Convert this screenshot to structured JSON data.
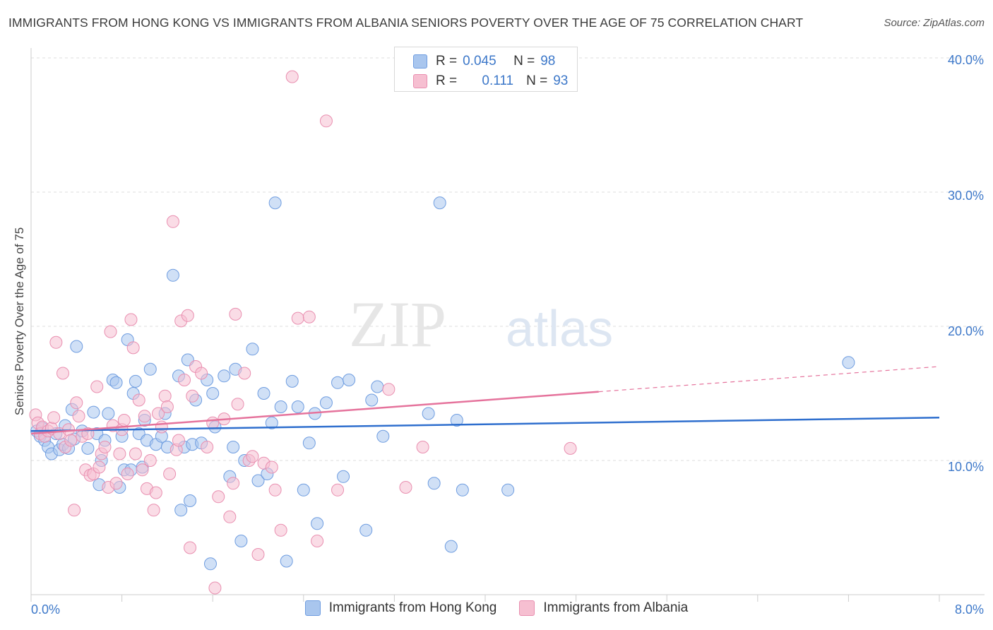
{
  "header": {
    "title": "IMMIGRANTS FROM HONG KONG VS IMMIGRANTS FROM ALBANIA SENIORS POVERTY OVER THE AGE OF 75 CORRELATION CHART",
    "source": "Source: ZipAtlas.com"
  },
  "legend_stats": [
    {
      "r_label": "R =",
      "r_value": "0.045",
      "n_label": "N =",
      "n_value": "98"
    },
    {
      "r_label": "R =",
      "r_value": "0.111",
      "n_label": "N =",
      "n_value": "93"
    }
  ],
  "watermark": {
    "part1": "ZIP",
    "part2": "atlas"
  },
  "colors": {
    "blue_fill": "#a9c6ee",
    "blue_stroke": "#6f9de0",
    "blue_line": "#2f6fce",
    "pink_fill": "#f6bfd1",
    "pink_stroke": "#e98fb0",
    "pink_line": "#e5739c",
    "axis_text": "#3d78c9",
    "grid": "#dddddd"
  },
  "chart_data": {
    "type": "scatter",
    "title": "IMMIGRANTS FROM HONG KONG VS IMMIGRANTS FROM ALBANIA SENIORS POVERTY OVER THE AGE OF 75 CORRELATION CHART",
    "xlabel": "",
    "ylabel": "Seniors Poverty Over the Age of 75",
    "xlim": [
      0,
      8
    ],
    "ylim": [
      0,
      40
    ],
    "x_tick_labels": [
      "0.0%",
      "8.0%"
    ],
    "y_ticks": [
      10,
      20,
      30,
      40
    ],
    "y_tick_labels": [
      "10.0%",
      "20.0%",
      "30.0%",
      "40.0%"
    ],
    "grid": true,
    "series": [
      {
        "name": "Immigrants from Hong Kong",
        "color": "#a9c6ee",
        "trend": {
          "x": [
            0,
            8
          ],
          "y": [
            12.2,
            13.2
          ],
          "solid_until": 8
        },
        "points": [
          [
            0.05,
            12.2
          ],
          [
            0.08,
            11.8
          ],
          [
            0.1,
            12.4
          ],
          [
            0.12,
            11.5
          ],
          [
            0.15,
            11.0
          ],
          [
            0.18,
            10.5
          ],
          [
            0.22,
            12.0
          ],
          [
            0.25,
            10.8
          ],
          [
            0.28,
            11.2
          ],
          [
            0.3,
            12.6
          ],
          [
            0.33,
            10.9
          ],
          [
            0.36,
            13.8
          ],
          [
            0.38,
            11.6
          ],
          [
            0.4,
            18.5
          ],
          [
            0.45,
            12.2
          ],
          [
            0.5,
            10.9
          ],
          [
            0.55,
            13.6
          ],
          [
            0.58,
            12.0
          ],
          [
            0.6,
            8.2
          ],
          [
            0.62,
            10.0
          ],
          [
            0.65,
            11.5
          ],
          [
            0.68,
            13.5
          ],
          [
            0.72,
            16.0
          ],
          [
            0.75,
            15.8
          ],
          [
            0.78,
            8.0
          ],
          [
            0.8,
            11.8
          ],
          [
            0.82,
            9.3
          ],
          [
            0.85,
            19.0
          ],
          [
            0.88,
            9.3
          ],
          [
            0.9,
            15.0
          ],
          [
            0.92,
            15.9
          ],
          [
            0.95,
            12.0
          ],
          [
            0.98,
            9.5
          ],
          [
            1.0,
            13.0
          ],
          [
            1.02,
            11.5
          ],
          [
            1.05,
            16.8
          ],
          [
            1.1,
            11.2
          ],
          [
            1.15,
            11.8
          ],
          [
            1.18,
            13.5
          ],
          [
            1.2,
            11.0
          ],
          [
            1.25,
            23.8
          ],
          [
            1.3,
            16.3
          ],
          [
            1.32,
            6.3
          ],
          [
            1.35,
            11.0
          ],
          [
            1.38,
            17.5
          ],
          [
            1.4,
            7.0
          ],
          [
            1.42,
            11.2
          ],
          [
            1.45,
            14.5
          ],
          [
            1.5,
            11.3
          ],
          [
            1.55,
            16.0
          ],
          [
            1.58,
            2.3
          ],
          [
            1.6,
            15.0
          ],
          [
            1.62,
            12.5
          ],
          [
            1.7,
            16.3
          ],
          [
            1.75,
            8.8
          ],
          [
            1.78,
            11.0
          ],
          [
            1.8,
            16.8
          ],
          [
            1.85,
            4.0
          ],
          [
            1.88,
            10.0
          ],
          [
            1.95,
            18.3
          ],
          [
            2.0,
            8.5
          ],
          [
            2.05,
            15.0
          ],
          [
            2.08,
            9.0
          ],
          [
            2.12,
            12.8
          ],
          [
            2.15,
            29.2
          ],
          [
            2.2,
            14.0
          ],
          [
            2.25,
            2.5
          ],
          [
            2.3,
            15.9
          ],
          [
            2.35,
            14.0
          ],
          [
            2.4,
            7.8
          ],
          [
            2.45,
            11.3
          ],
          [
            2.5,
            13.5
          ],
          [
            2.52,
            5.3
          ],
          [
            2.6,
            14.3
          ],
          [
            2.7,
            15.8
          ],
          [
            2.75,
            8.8
          ],
          [
            2.8,
            16.0
          ],
          [
            2.95,
            4.8
          ],
          [
            3.0,
            14.5
          ],
          [
            3.05,
            15.5
          ],
          [
            3.1,
            11.8
          ],
          [
            3.5,
            13.5
          ],
          [
            3.55,
            8.3
          ],
          [
            3.6,
            29.2
          ],
          [
            3.7,
            3.6
          ],
          [
            3.75,
            13.0
          ],
          [
            3.8,
            7.8
          ],
          [
            4.2,
            7.8
          ],
          [
            7.2,
            17.3
          ]
        ]
      },
      {
        "name": "Immigrants from Albania",
        "color": "#f6bfd1",
        "trend": {
          "x": [
            0,
            8
          ],
          "y": [
            12.0,
            17.0
          ],
          "solid_until": 5.0
        },
        "points": [
          [
            0.04,
            13.4
          ],
          [
            0.06,
            12.8
          ],
          [
            0.08,
            12.0
          ],
          [
            0.1,
            12.5
          ],
          [
            0.12,
            11.8
          ],
          [
            0.15,
            12.2
          ],
          [
            0.18,
            12.4
          ],
          [
            0.2,
            13.2
          ],
          [
            0.22,
            18.8
          ],
          [
            0.25,
            12.0
          ],
          [
            0.28,
            16.5
          ],
          [
            0.3,
            11.0
          ],
          [
            0.33,
            12.3
          ],
          [
            0.35,
            11.5
          ],
          [
            0.38,
            6.3
          ],
          [
            0.4,
            14.3
          ],
          [
            0.42,
            13.3
          ],
          [
            0.45,
            11.8
          ],
          [
            0.48,
            9.3
          ],
          [
            0.5,
            12.0
          ],
          [
            0.52,
            8.9
          ],
          [
            0.55,
            9.0
          ],
          [
            0.58,
            15.5
          ],
          [
            0.6,
            9.5
          ],
          [
            0.62,
            10.5
          ],
          [
            0.65,
            11.0
          ],
          [
            0.68,
            8.0
          ],
          [
            0.7,
            19.6
          ],
          [
            0.72,
            12.6
          ],
          [
            0.75,
            8.3
          ],
          [
            0.78,
            10.5
          ],
          [
            0.8,
            12.3
          ],
          [
            0.82,
            13.0
          ],
          [
            0.85,
            9.0
          ],
          [
            0.88,
            20.5
          ],
          [
            0.9,
            18.4
          ],
          [
            0.92,
            10.5
          ],
          [
            0.95,
            14.5
          ],
          [
            0.98,
            9.3
          ],
          [
            1.0,
            13.3
          ],
          [
            1.02,
            7.9
          ],
          [
            1.05,
            10.0
          ],
          [
            1.08,
            6.3
          ],
          [
            1.1,
            7.6
          ],
          [
            1.12,
            13.5
          ],
          [
            1.15,
            12.5
          ],
          [
            1.18,
            14.8
          ],
          [
            1.2,
            14.0
          ],
          [
            1.22,
            9.0
          ],
          [
            1.25,
            27.8
          ],
          [
            1.28,
            10.8
          ],
          [
            1.3,
            11.5
          ],
          [
            1.32,
            20.4
          ],
          [
            1.35,
            16.0
          ],
          [
            1.38,
            20.8
          ],
          [
            1.4,
            3.5
          ],
          [
            1.42,
            14.8
          ],
          [
            1.45,
            17.0
          ],
          [
            1.5,
            16.5
          ],
          [
            1.55,
            11.0
          ],
          [
            1.6,
            12.8
          ],
          [
            1.62,
            0.5
          ],
          [
            1.65,
            7.3
          ],
          [
            1.7,
            13.1
          ],
          [
            1.75,
            5.8
          ],
          [
            1.78,
            8.3
          ],
          [
            1.8,
            20.9
          ],
          [
            1.82,
            14.2
          ],
          [
            1.88,
            16.5
          ],
          [
            1.92,
            10.0
          ],
          [
            1.95,
            10.3
          ],
          [
            2.0,
            3.0
          ],
          [
            2.05,
            9.8
          ],
          [
            2.12,
            9.5
          ],
          [
            2.15,
            7.8
          ],
          [
            2.2,
            4.8
          ],
          [
            2.3,
            38.6
          ],
          [
            2.35,
            20.6
          ],
          [
            2.45,
            20.7
          ],
          [
            2.52,
            4.0
          ],
          [
            2.6,
            35.3
          ],
          [
            2.7,
            7.8
          ],
          [
            3.15,
            15.3
          ],
          [
            3.3,
            8.0
          ],
          [
            3.45,
            11.0
          ],
          [
            4.75,
            10.9
          ]
        ]
      }
    ]
  },
  "bottom_legend": [
    "Immigrants from Hong Kong",
    "Immigrants from Albania"
  ]
}
